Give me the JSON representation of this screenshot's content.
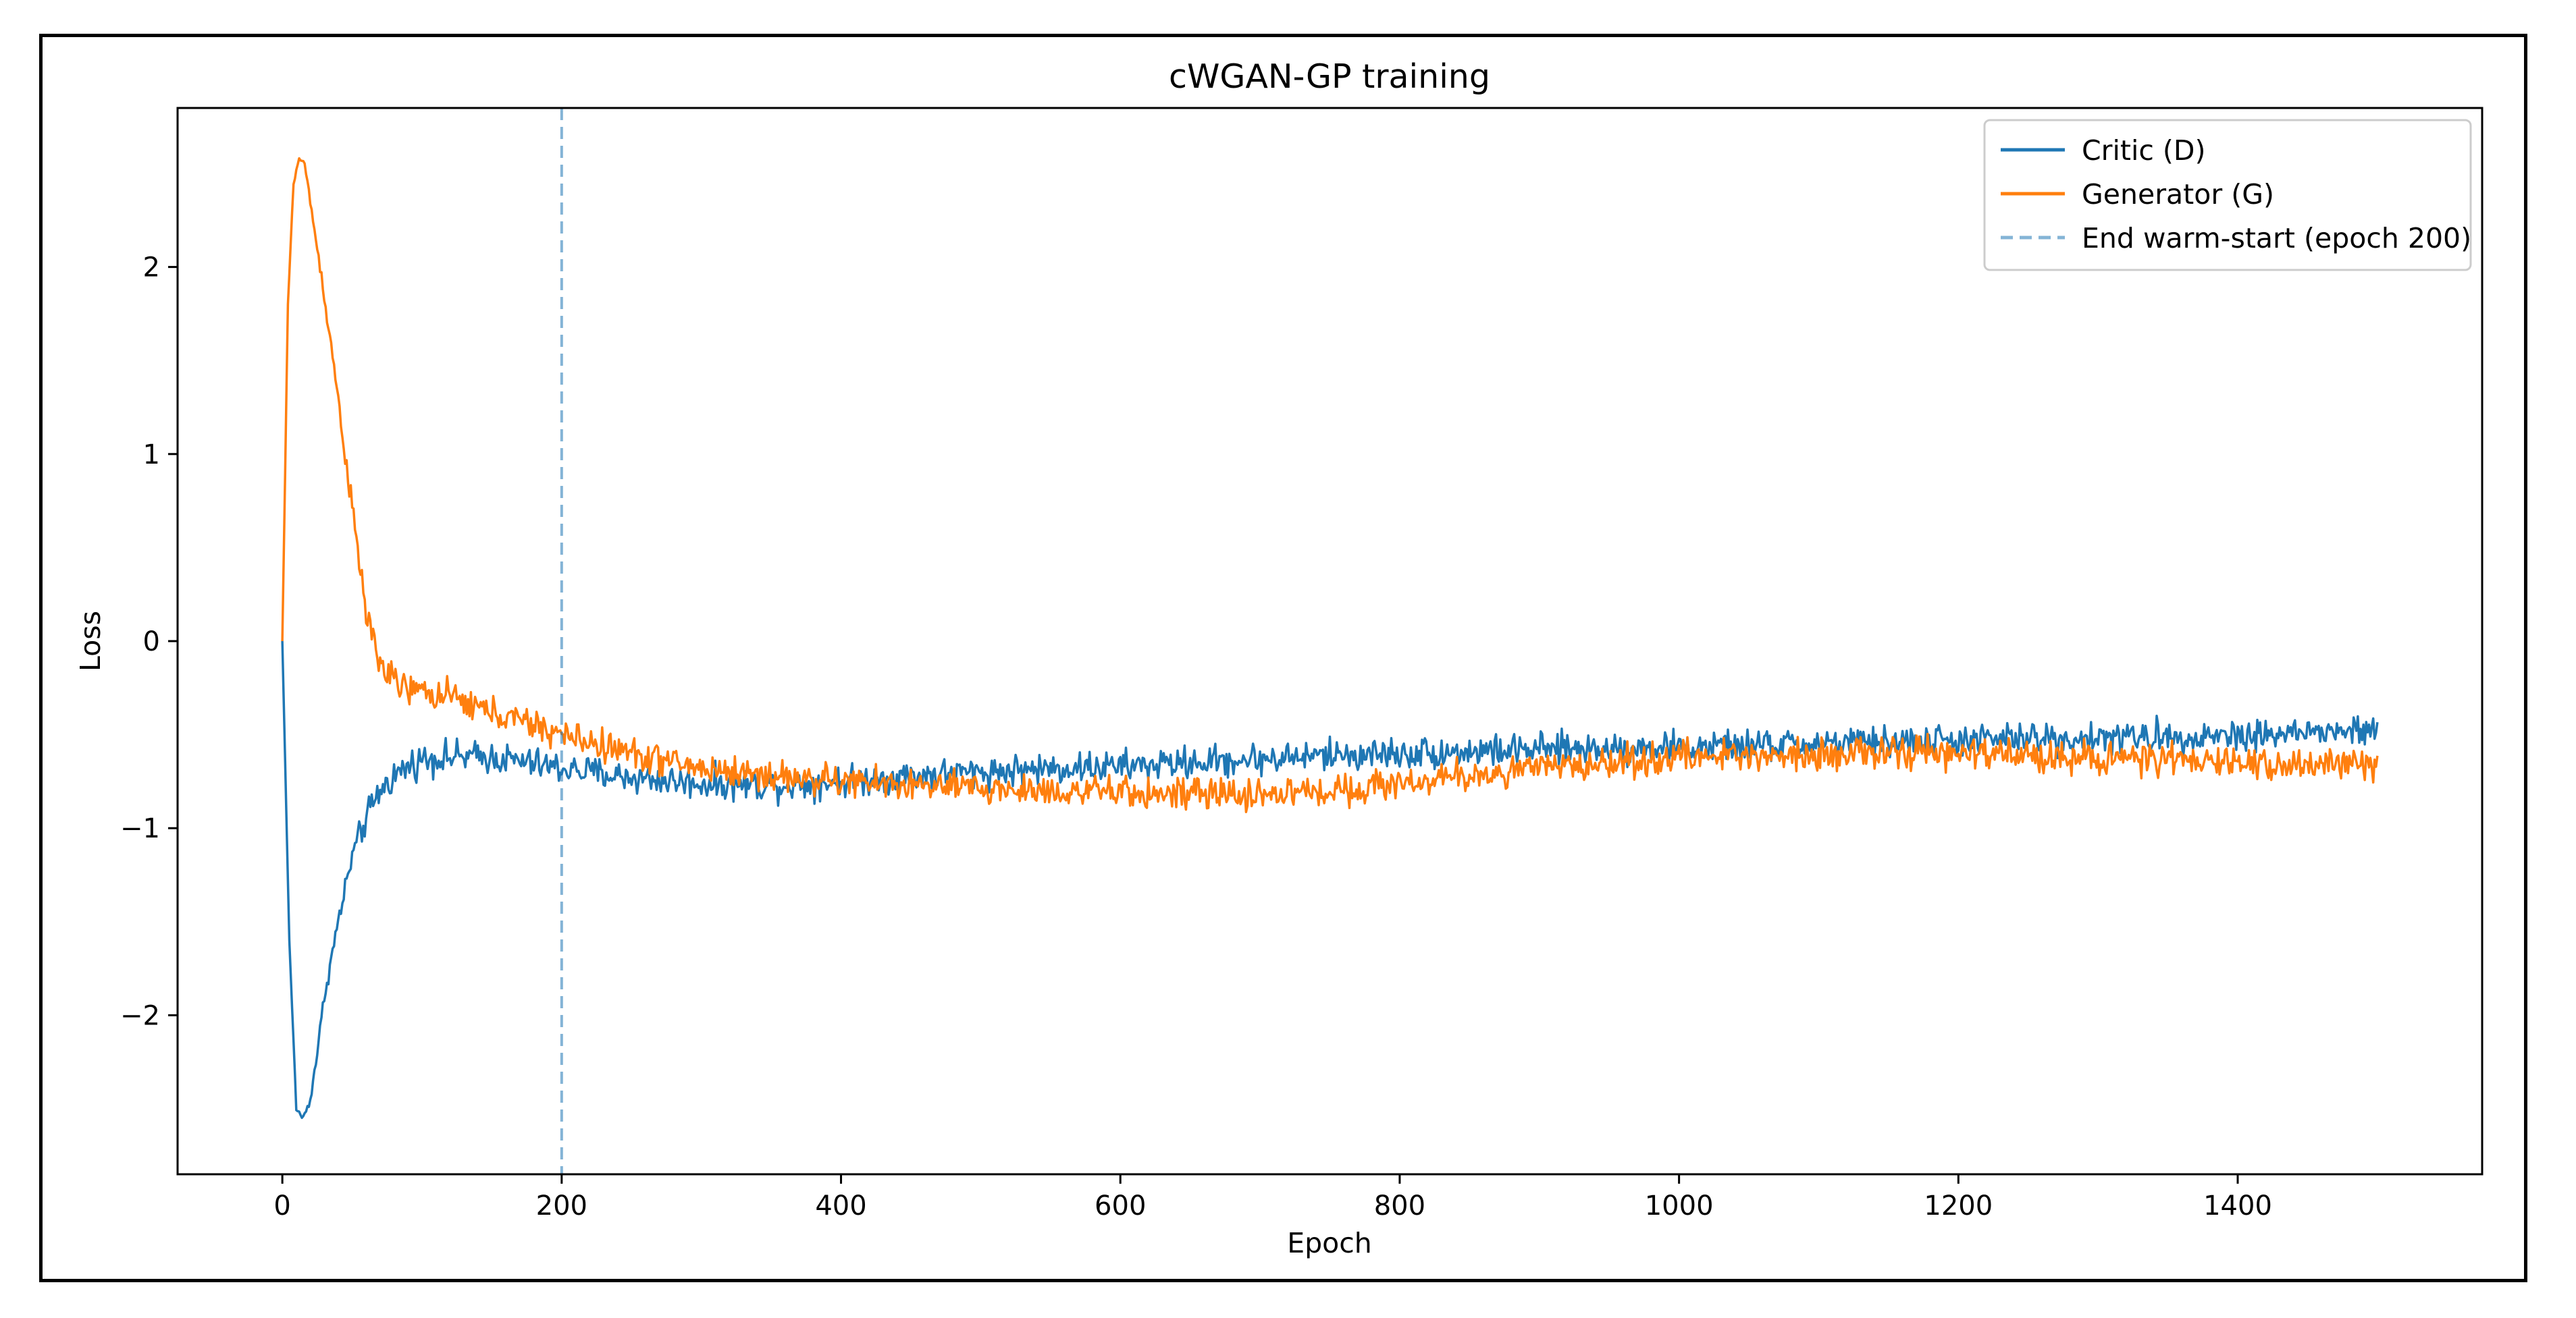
{
  "chart_data": {
    "type": "line",
    "title": "cWGAN-GP training",
    "xlabel": "Epoch",
    "ylabel": "Loss",
    "xlim": [
      -75,
      1575
    ],
    "ylim": [
      -2.85,
      2.85
    ],
    "xticks": [
      0,
      200,
      400,
      600,
      800,
      1000,
      1200,
      1400
    ],
    "yticks": [
      2,
      1,
      0,
      -1,
      -2
    ],
    "xtick_labels": [
      "0",
      "200",
      "400",
      "600",
      "800",
      "1000",
      "1200",
      "1400"
    ],
    "ytick_labels": [
      "2",
      "1",
      "0",
      "−1",
      "−2"
    ],
    "grid": false,
    "legend_position": "top-right",
    "series": [
      {
        "name": "Critic (D)",
        "color": "#1f77b4",
        "x": [
          0,
          5,
          10,
          15,
          20,
          25,
          30,
          40,
          50,
          60,
          70,
          80,
          90,
          100,
          120,
          150,
          200,
          250,
          300,
          350,
          400,
          450,
          500,
          550,
          600,
          650,
          700,
          750,
          800,
          850,
          900,
          950,
          1000,
          1050,
          1100,
          1150,
          1200,
          1250,
          1300,
          1350,
          1400,
          1450,
          1500
        ],
        "y": [
          0.0,
          -1.6,
          -2.5,
          -2.55,
          -2.45,
          -2.2,
          -1.9,
          -1.5,
          -1.15,
          -0.95,
          -0.8,
          -0.72,
          -0.67,
          -0.63,
          -0.62,
          -0.62,
          -0.68,
          -0.73,
          -0.76,
          -0.77,
          -0.75,
          -0.72,
          -0.7,
          -0.68,
          -0.67,
          -0.65,
          -0.63,
          -0.61,
          -0.6,
          -0.59,
          -0.58,
          -0.57,
          -0.57,
          -0.56,
          -0.55,
          -0.54,
          -0.53,
          -0.52,
          -0.52,
          -0.51,
          -0.5,
          -0.49,
          -0.48
        ],
        "noise_amplitude": 0.07
      },
      {
        "name": "Generator (G)",
        "color": "#ff7f0e",
        "x": [
          0,
          4,
          8,
          12,
          16,
          20,
          25,
          30,
          40,
          50,
          60,
          70,
          80,
          90,
          100,
          120,
          150,
          180,
          200,
          250,
          300,
          350,
          400,
          450,
          500,
          550,
          600,
          650,
          700,
          750,
          800,
          850,
          900,
          950,
          1000,
          1050,
          1100,
          1150,
          1200,
          1250,
          1300,
          1350,
          1400,
          1450,
          1500
        ],
        "y": [
          0.0,
          1.8,
          2.45,
          2.58,
          2.55,
          2.35,
          2.1,
          1.85,
          1.3,
          0.7,
          0.15,
          -0.12,
          -0.22,
          -0.26,
          -0.27,
          -0.3,
          -0.38,
          -0.45,
          -0.5,
          -0.6,
          -0.68,
          -0.72,
          -0.75,
          -0.77,
          -0.79,
          -0.8,
          -0.81,
          -0.82,
          -0.82,
          -0.8,
          -0.76,
          -0.72,
          -0.68,
          -0.65,
          -0.62,
          -0.61,
          -0.6,
          -0.6,
          -0.6,
          -0.61,
          -0.62,
          -0.64,
          -0.65,
          -0.66,
          -0.66
        ],
        "noise_amplitude": 0.07
      }
    ],
    "annotations": [
      {
        "name": "End warm-start (epoch 200)",
        "type": "vline",
        "x": 200,
        "color": "#1f77b4",
        "style": "dashed",
        "alpha": 0.55
      }
    ]
  }
}
